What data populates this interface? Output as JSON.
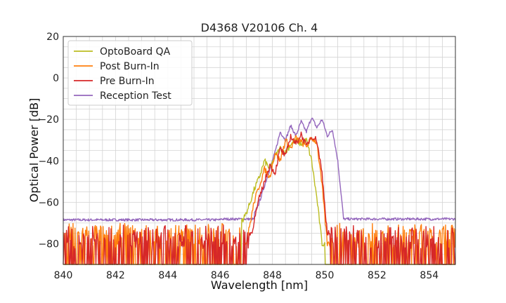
{
  "chart_data": {
    "type": "line",
    "title": "D4368 V20106 Ch. 4",
    "xlabel": "Wavelength [nm]",
    "ylabel": "Optical Power [dB]",
    "xlim": [
      840,
      855
    ],
    "ylim": [
      -90,
      20
    ],
    "xticks": [
      840,
      842,
      844,
      846,
      848,
      850,
      852,
      854
    ],
    "yticks": [
      20,
      0,
      -20,
      -40,
      -60,
      -80
    ],
    "ytick_labels": [
      "20",
      "0",
      "−20",
      "−40",
      "−60",
      "−80"
    ],
    "grid": true,
    "legend_position": "top-left",
    "series": [
      {
        "name": "OptoBoard QA",
        "color": "#bcbd22",
        "noise_floor": {
          "xrange": [
            840,
            855
          ],
          "range": [
            -90,
            -90
          ]
        },
        "peaks": [
          [
            846.9,
            -68
          ],
          [
            847.1,
            -62
          ],
          [
            847.3,
            -54
          ],
          [
            847.5,
            -48
          ],
          [
            847.7,
            -40
          ],
          [
            847.9,
            -44
          ],
          [
            848.1,
            -38
          ],
          [
            848.3,
            -34
          ],
          [
            848.5,
            -36
          ],
          [
            848.7,
            -32
          ],
          [
            848.9,
            -30
          ],
          [
            849.1,
            -32
          ],
          [
            849.3,
            -30
          ],
          [
            849.5,
            -40
          ],
          [
            849.7,
            -58
          ],
          [
            849.9,
            -80
          ]
        ]
      },
      {
        "name": "Post Burn-In",
        "color": "#ff7f0e",
        "noise_floor": {
          "xrange": [
            840,
            855
          ],
          "range": [
            -90,
            -70
          ]
        },
        "peaks": [
          [
            847.0,
            -80
          ],
          [
            847.3,
            -60
          ],
          [
            847.5,
            -52
          ],
          [
            847.7,
            -44
          ],
          [
            847.9,
            -48
          ],
          [
            848.1,
            -36
          ],
          [
            848.3,
            -40
          ],
          [
            848.5,
            -30
          ],
          [
            848.7,
            -34
          ],
          [
            848.9,
            -29
          ],
          [
            849.1,
            -31
          ],
          [
            849.3,
            -33
          ],
          [
            849.5,
            -29
          ],
          [
            849.7,
            -31
          ],
          [
            849.9,
            -52
          ],
          [
            850.1,
            -80
          ]
        ]
      },
      {
        "name": "Pre Burn-In",
        "color": "#d62728",
        "noise_floor": {
          "xrange": [
            840,
            855
          ],
          "range": [
            -90,
            -71
          ]
        },
        "peaks": [
          [
            847.2,
            -75
          ],
          [
            847.5,
            -58
          ],
          [
            847.7,
            -50
          ],
          [
            847.9,
            -42
          ],
          [
            848.1,
            -46
          ],
          [
            848.3,
            -34
          ],
          [
            848.5,
            -38
          ],
          [
            848.7,
            -28
          ],
          [
            848.9,
            -32
          ],
          [
            849.1,
            -27
          ],
          [
            849.3,
            -33
          ],
          [
            849.5,
            -28
          ],
          [
            849.7,
            -30
          ],
          [
            849.9,
            -46
          ],
          [
            850.1,
            -75
          ]
        ]
      },
      {
        "name": "Reception Test",
        "color": "#9467bd",
        "baseline": {
          "xrange": [
            840,
            855
          ],
          "range": [
            -68,
            -69
          ]
        },
        "peaks": [
          [
            847.3,
            -66
          ],
          [
            847.5,
            -60
          ],
          [
            847.7,
            -52
          ],
          [
            847.9,
            -44
          ],
          [
            848.1,
            -36
          ],
          [
            848.3,
            -26
          ],
          [
            848.5,
            -30
          ],
          [
            848.7,
            -23
          ],
          [
            848.9,
            -28
          ],
          [
            849.1,
            -21
          ],
          [
            849.3,
            -26
          ],
          [
            849.5,
            -19
          ],
          [
            849.7,
            -24
          ],
          [
            849.9,
            -20
          ],
          [
            850.1,
            -28
          ],
          [
            850.3,
            -25
          ],
          [
            850.5,
            -40
          ],
          [
            850.7,
            -65
          ]
        ]
      }
    ]
  }
}
